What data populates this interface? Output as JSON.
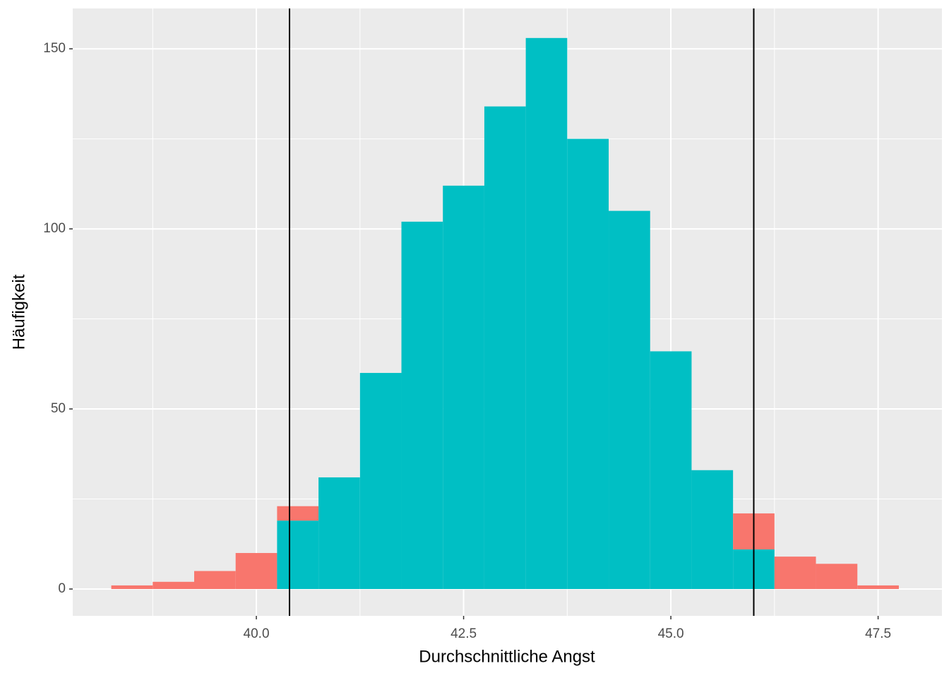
{
  "chart_data": {
    "type": "histogram",
    "x_label": "Durchschnittliche Angst",
    "y_label": "Häufigkeit",
    "bins": [
      38.25,
      38.75,
      39.25,
      39.75,
      40.25,
      40.75,
      41.25,
      41.75,
      42.25,
      42.75,
      43.25,
      43.75,
      44.25,
      44.75,
      45.25,
      45.75,
      46.25,
      46.75,
      47.25,
      47.75
    ],
    "series": [
      {
        "color": "#00BFC4",
        "values": [
          0,
          0,
          0,
          0,
          19,
          31,
          60,
          102,
          112,
          134,
          153,
          125,
          105,
          66,
          33,
          11,
          0,
          0,
          0
        ]
      },
      {
        "color": "#F8766D",
        "values": [
          1,
          2,
          5,
          10,
          4,
          0,
          0,
          0,
          0,
          0,
          0,
          0,
          0,
          0,
          0,
          10,
          9,
          7,
          1
        ]
      }
    ],
    "stacked": true,
    "vlines": [
      40.4,
      46.0
    ],
    "vline_color": "#000000",
    "xlim": [
      37.785,
      48.27
    ],
    "ylim": [
      -7.45,
      161.2
    ],
    "xticks": [
      {
        "value": 40.0,
        "label": "40.0"
      },
      42.5,
      {
        "value": 45.0,
        "label": "45.0"
      },
      47.5
    ],
    "yticks": [
      0,
      50,
      100,
      150
    ],
    "grid": true
  }
}
